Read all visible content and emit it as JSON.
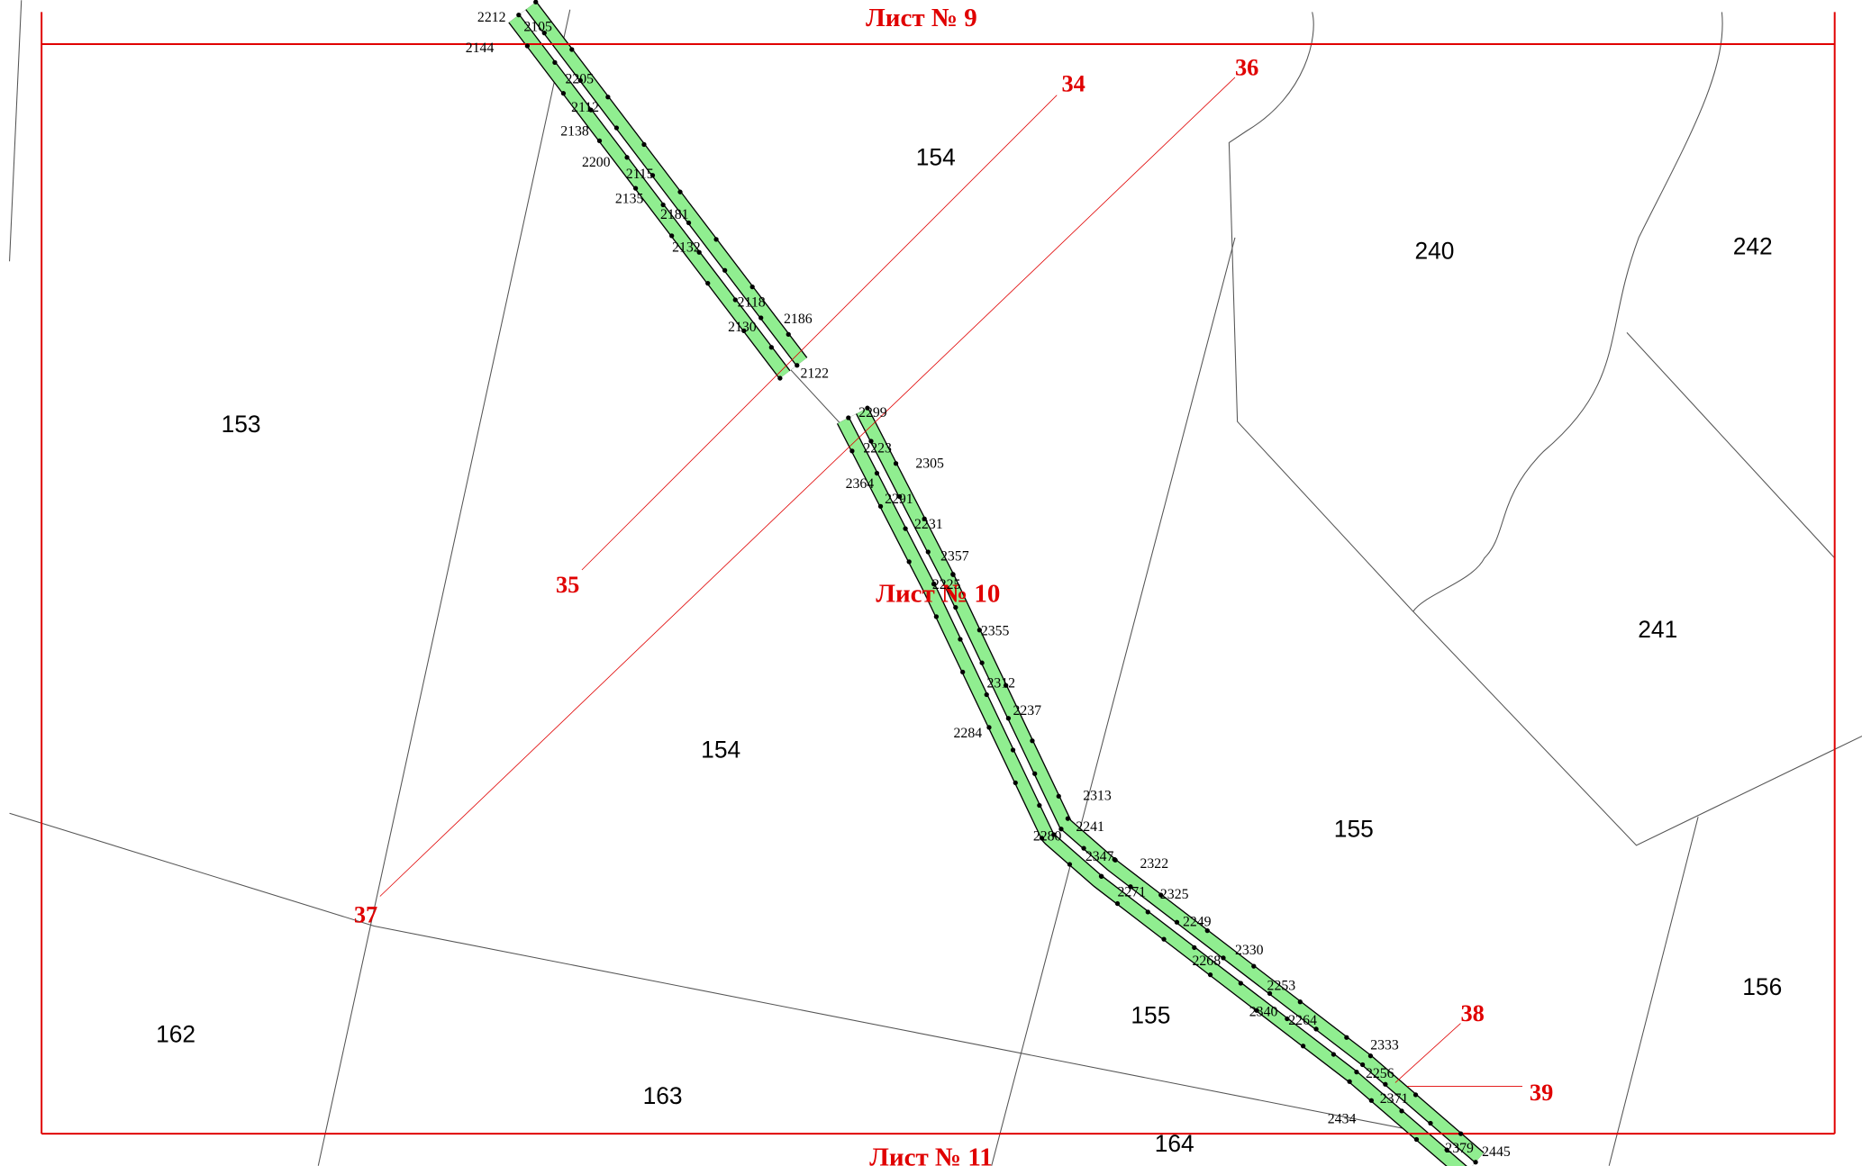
{
  "sheets": [
    "Лист № 9",
    "Лист № 10",
    "Лист № 11"
  ],
  "line_labels": [
    "34",
    "35",
    "36",
    "37",
    "38",
    "39"
  ],
  "parcels": [
    "153",
    "154",
    "154",
    "155",
    "155",
    "156",
    "162",
    "163",
    "164",
    "240",
    "241",
    "242"
  ],
  "points": [
    "2212",
    "2105",
    "2144",
    "2205",
    "2112",
    "2138",
    "2200",
    "2115",
    "2135",
    "2181",
    "2132",
    "2118",
    "2186",
    "2130",
    "2122",
    "2299",
    "2223",
    "2305",
    "2364",
    "2291",
    "2231",
    "2357",
    "2225",
    "2355",
    "2312",
    "2237",
    "2284",
    "2313",
    "2241",
    "2280",
    "2347",
    "2322",
    "2271",
    "2325",
    "2249",
    "2330",
    "2268",
    "2253",
    "2340",
    "2264",
    "2333",
    "2256",
    "2371",
    "2434",
    "2379",
    "2445"
  ]
}
